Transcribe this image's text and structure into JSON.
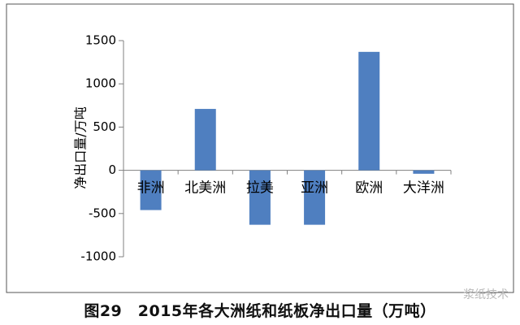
{
  "caption": "图29　2015年各大洲纸和纸板净出口量（万吨）",
  "watermark": "浆纸技术",
  "chart_data": {
    "type": "bar",
    "title": "",
    "xlabel": "",
    "ylabel": "净出口量/万吨",
    "categories": [
      "非洲",
      "北美洲",
      "拉美",
      "亚洲",
      "欧洲",
      "大洋洲"
    ],
    "values": [
      -460,
      710,
      -630,
      -630,
      1370,
      -40
    ],
    "ylim": [
      -1000,
      1500
    ],
    "yticks": [
      -1000,
      -500,
      0,
      500,
      1000,
      1500
    ],
    "bar_color": "#4f7fc0",
    "grid": false,
    "legend": "none"
  }
}
